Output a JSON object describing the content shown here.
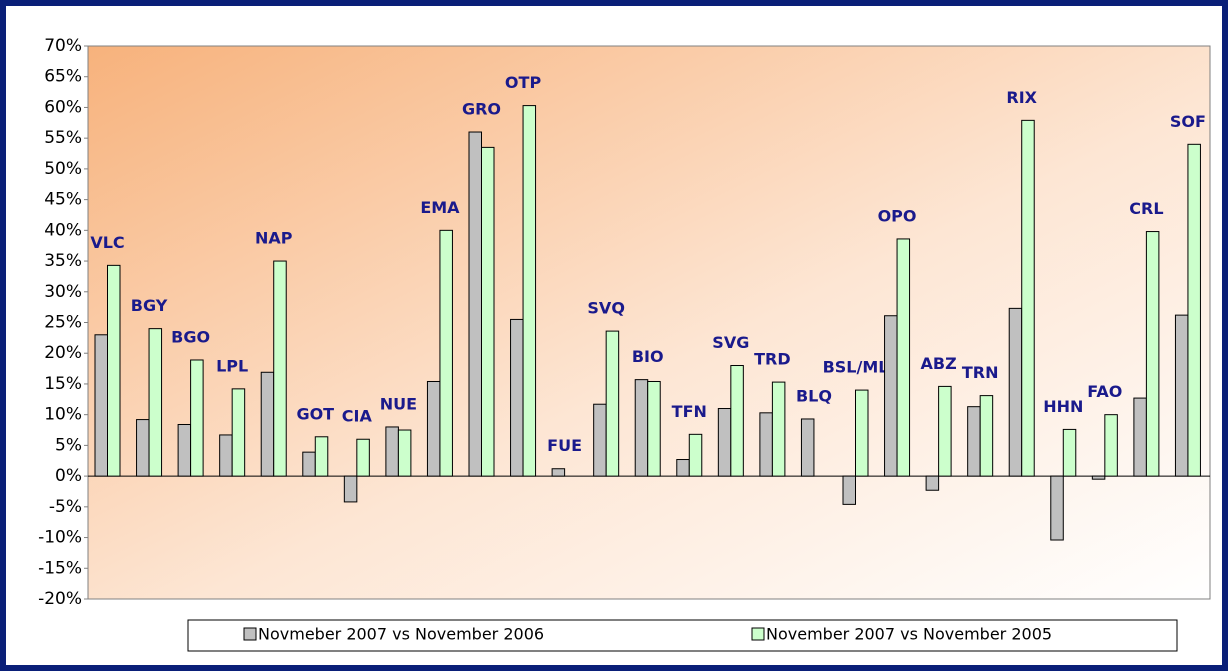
{
  "chart_data": {
    "type": "bar",
    "categories": [
      "VLC",
      "BGY",
      "BGO",
      "LPL",
      "NAP",
      "GOT",
      "CIA",
      "NUE",
      "EMA",
      "GRO",
      "OTP",
      "FUE",
      "SVQ",
      "BIO",
      "TFN",
      "SVG",
      "TRD",
      "BLQ",
      "BSL/ML",
      "OPO",
      "ABZ",
      "TRN",
      "RIX",
      "HHN",
      "FAO",
      "CRL",
      "SOF"
    ],
    "series": [
      {
        "name": "Novmeber 2007 vs November 2006",
        "color": "#c0c0c0",
        "values": [
          23,
          9.2,
          8.4,
          6.7,
          16.9,
          3.9,
          -4.2,
          8,
          15.4,
          56,
          25.5,
          1.2,
          11.7,
          15.7,
          2.7,
          11,
          10.3,
          9.3,
          -4.6,
          26.1,
          -2.3,
          11.3,
          27.3,
          -10.4,
          -0.5,
          12.7,
          26.2
        ]
      },
      {
        "name": "November 2007 vs November 2005",
        "color": "#ccffcc",
        "values": [
          34.3,
          24,
          18.9,
          14.2,
          35,
          6.4,
          6,
          7.5,
          40,
          53.5,
          60.3,
          null,
          23.6,
          15.4,
          6.8,
          18,
          15.3,
          null,
          14,
          38.6,
          14.6,
          13.1,
          57.9,
          7.6,
          10,
          39.8,
          54
        ]
      }
    ],
    "ylim": [
      -20,
      70
    ],
    "yticks": [
      {
        "value": -20,
        "label": "-20%"
      },
      {
        "value": -15,
        "label": "-15%"
      },
      {
        "value": -10,
        "label": "-10%"
      },
      {
        "value": -5,
        "label": "-5%"
      },
      {
        "value": 0,
        "label": "0%"
      },
      {
        "value": 5,
        "label": "5%"
      },
      {
        "value": 10,
        "label": "10%"
      },
      {
        "value": 15,
        "label": "15%"
      },
      {
        "value": 20,
        "label": "20%"
      },
      {
        "value": 25,
        "label": "25%"
      },
      {
        "value": 30,
        "label": "30%"
      },
      {
        "value": 35,
        "label": "35%"
      },
      {
        "value": 40,
        "label": "40%"
      },
      {
        "value": 45,
        "label": "45%"
      },
      {
        "value": 50,
        "label": "50%"
      },
      {
        "value": 55,
        "label": "55%"
      },
      {
        "value": 60,
        "label": "60%"
      },
      {
        "value": 65,
        "label": "65%"
      },
      {
        "value": 70,
        "label": "70%"
      }
    ],
    "grid": false,
    "legend": "bottom"
  }
}
